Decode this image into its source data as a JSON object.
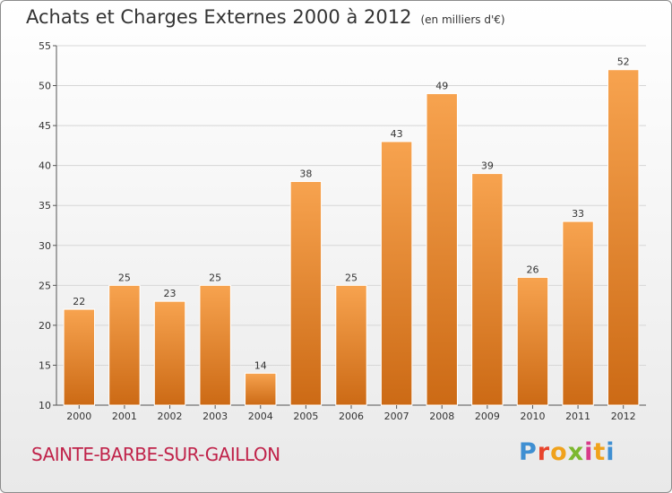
{
  "chart_data": {
    "type": "bar",
    "title": "Achats et Charges Externes 2000 à 2012",
    "unit": "(en milliers d'€)",
    "categories": [
      "2000",
      "2001",
      "2002",
      "2003",
      "2004",
      "2005",
      "2006",
      "2007",
      "2008",
      "2009",
      "2010",
      "2011",
      "2012"
    ],
    "values": [
      22,
      25,
      23,
      25,
      14,
      38,
      25,
      43,
      49,
      39,
      26,
      33,
      52
    ],
    "ylim": [
      10,
      55
    ],
    "yticks": [
      10,
      15,
      20,
      25,
      30,
      35,
      40,
      45,
      50,
      55
    ],
    "grid": true,
    "bar_color_top": "#f7a34f",
    "bar_color_bottom": "#cc6a15"
  },
  "footer": {
    "city": "SAINTE-BARBE-SUR-GAILLON",
    "city_color": "#c0234a",
    "logo_letters": [
      "P",
      "r",
      "o",
      "x",
      "i",
      "t",
      "i"
    ],
    "logo_colors": [
      "#3f8fd2",
      "#e8442c",
      "#f0a21c",
      "#7cb82f",
      "#d83a8a",
      "#f0a21c",
      "#3f8fd2"
    ]
  }
}
